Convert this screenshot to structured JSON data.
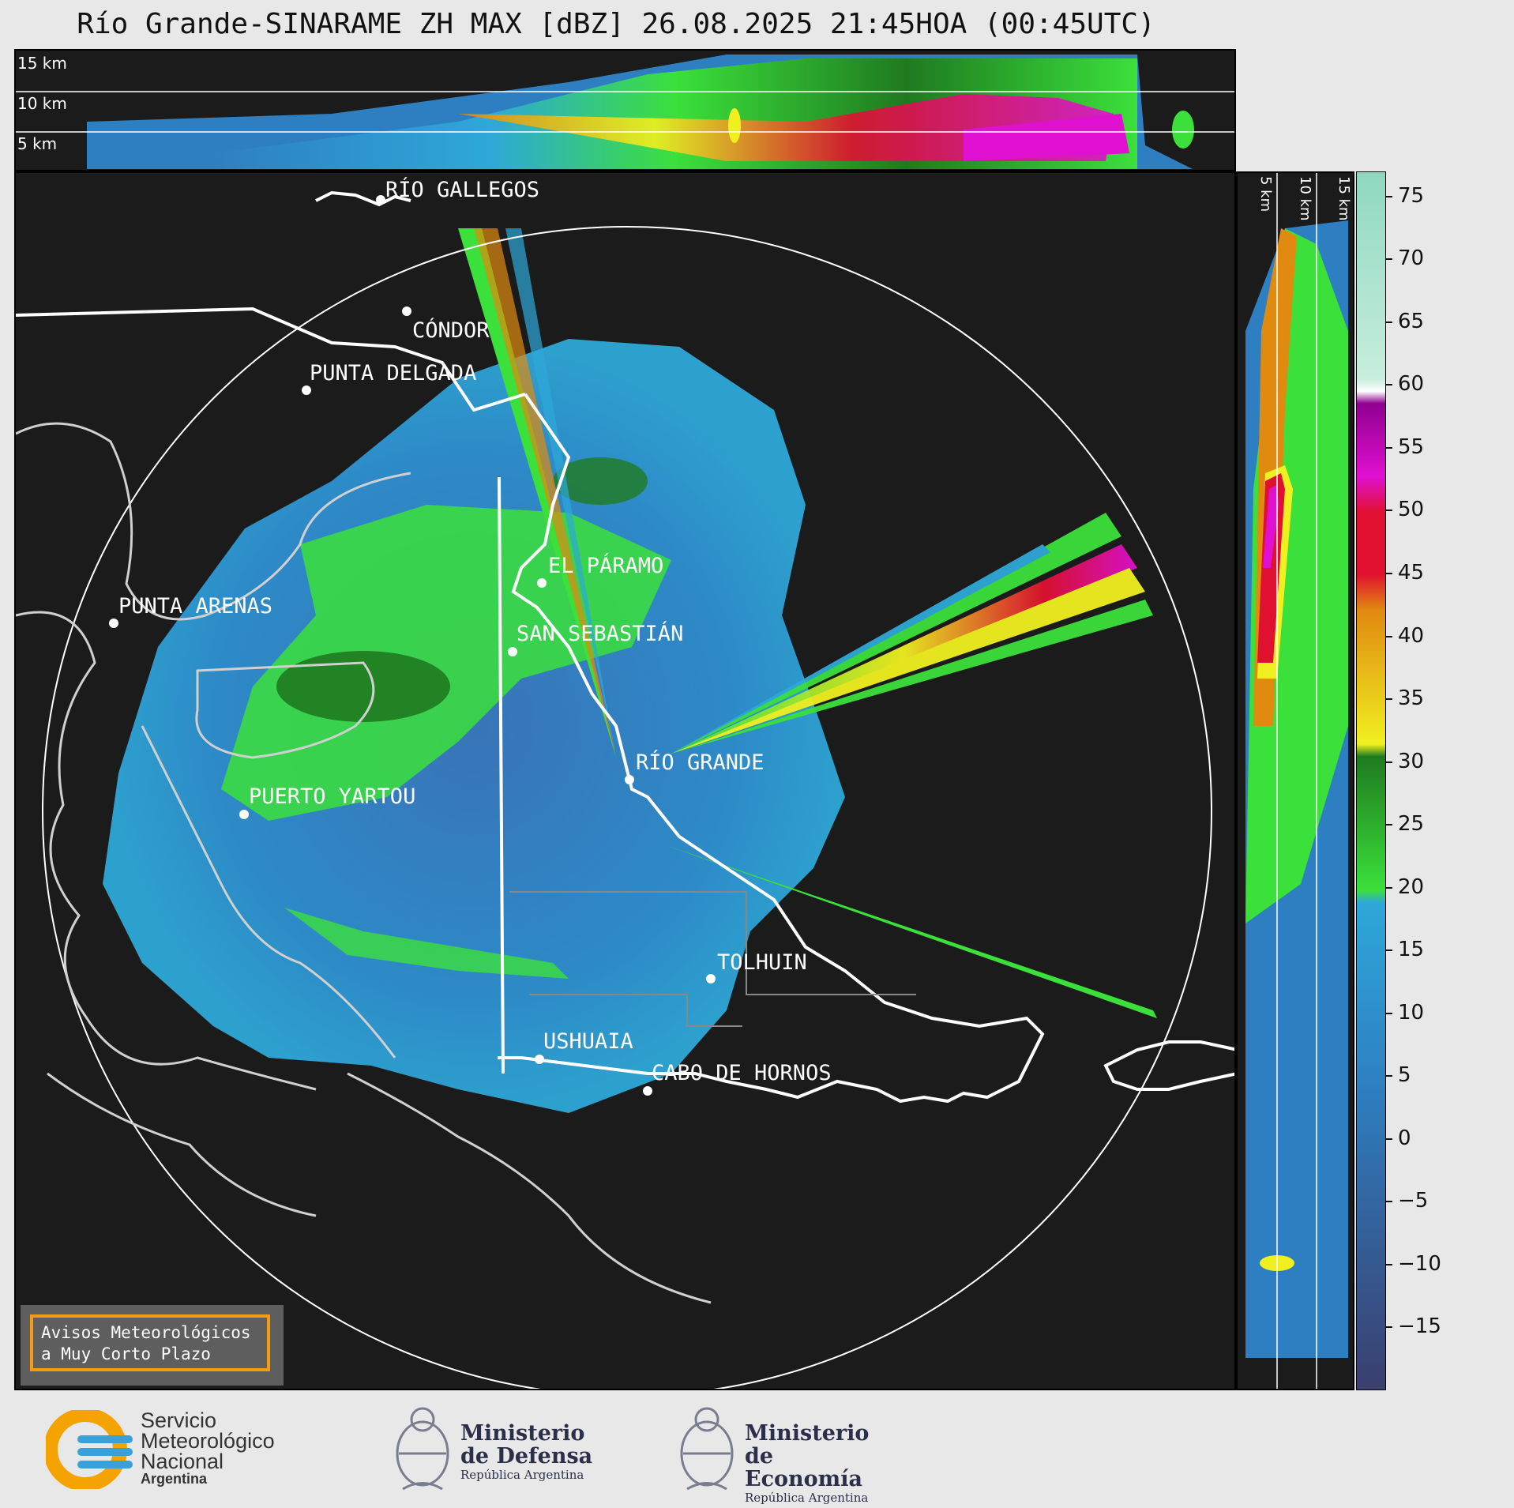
{
  "title": "Río Grande-SINARAME ZH MAX [dBZ] 26.08.2025 21:45HOA (00:45UTC)",
  "top_section_labels": [
    "15 km",
    "10 km",
    "5 km"
  ],
  "right_section_labels": [
    "5 km",
    "10 km",
    "15 km"
  ],
  "cities": [
    {
      "name": "RÍO GALLEGOS"
    },
    {
      "name": "CÓNDOR"
    },
    {
      "name": "PUNTA DELGADA"
    },
    {
      "name": "PUNTA ARENAS"
    },
    {
      "name": "EL PÁRAMO"
    },
    {
      "name": "SAN SEBASTIÁN"
    },
    {
      "name": "RÍO GRANDE"
    },
    {
      "name": "PUERTO YARTOU"
    },
    {
      "name": "TOLHUIN"
    },
    {
      "name": "USHUAIA"
    },
    {
      "name": "CABO DE HORNOS"
    }
  ],
  "colorbar": {
    "unit": "dBZ",
    "min": -20,
    "max": 77,
    "ticks": [
      "75",
      "70",
      "65",
      "60",
      "55",
      "50",
      "45",
      "40",
      "35",
      "30",
      "25",
      "20",
      "15",
      "10",
      "5",
      "0",
      "−5",
      "−10",
      "−15"
    ],
    "colors": {
      "navy": "#3a3f6e",
      "blue": "#2e7fc1",
      "light_blue": "#2ea8d8",
      "green": "#3be03b",
      "dark_green": "#1f7a1f",
      "yellow": "#f0f020",
      "orange": "#e08a10",
      "red": "#e01030",
      "magenta": "#e010d0",
      "purple": "#900090",
      "white": "#ffffff",
      "mint": "#8ed8c0"
    }
  },
  "avisos": {
    "line1": "Avisos Meteorológicos",
    "line2": "a Muy Corto Plazo"
  },
  "logos": {
    "smn": {
      "line1": "Servicio",
      "line2": "Meteorológico",
      "line3": "Nacional",
      "line4": "Argentina"
    },
    "defensa": {
      "line1": "Ministerio",
      "line2": "de Defensa",
      "sub": "República Argentina"
    },
    "economia": {
      "line1": "Ministerio",
      "line2": "de Economía",
      "sub": "República Argentina"
    }
  }
}
